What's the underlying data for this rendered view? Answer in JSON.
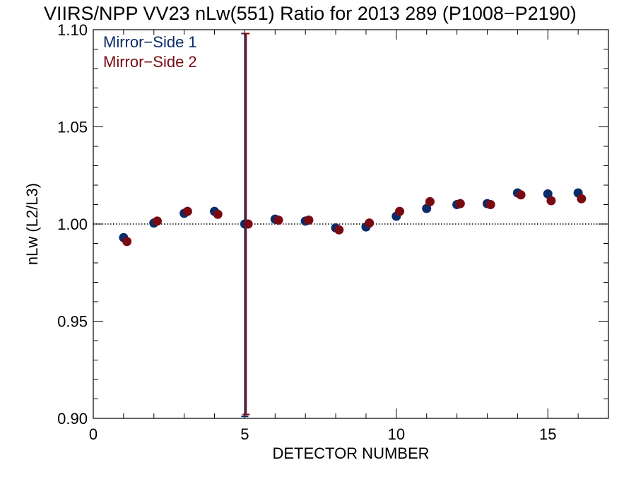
{
  "chart_data": {
    "type": "scatter",
    "title": "VIIRS/NPP VV23 nLw(551) Ratio for 2013 289 (P1008−P2190)",
    "xlabel": "DETECTOR NUMBER",
    "ylabel": "nLw (L2/L3)",
    "xlim": [
      0,
      17
    ],
    "ylim": [
      0.9,
      1.1
    ],
    "xticks": [
      0,
      5,
      10,
      15
    ],
    "xtick_labels": [
      "0",
      "5",
      "10",
      "15"
    ],
    "yticks": [
      0.9,
      0.95,
      1.0,
      1.05,
      1.1
    ],
    "ytick_labels": [
      "0.90",
      "0.95",
      "1.00",
      "1.05",
      "1.10"
    ],
    "reference_line": 1.0,
    "legend_position": "top-left",
    "grid": false,
    "series": [
      {
        "name": "Mirror−Side 1",
        "color": "#0b2c6a",
        "x": [
          1,
          2,
          3,
          4,
          5,
          6,
          7,
          8,
          9,
          10,
          11,
          12,
          13,
          14,
          15,
          16
        ],
        "y": [
          0.993,
          1.0005,
          1.0055,
          1.0065,
          1.0,
          1.0025,
          1.0015,
          0.998,
          0.9985,
          1.004,
          1.008,
          1.01,
          1.0105,
          1.016,
          1.0155,
          1.016
        ],
        "error_bar": {
          "x": 5,
          "low": 0.901,
          "high": 1.098
        }
      },
      {
        "name": "Mirror−Side 2",
        "color": "#7a0a12",
        "x": [
          1,
          2,
          3,
          4,
          5,
          6,
          7,
          8,
          9,
          10,
          11,
          12,
          13,
          14,
          15,
          16
        ],
        "y": [
          0.991,
          1.0015,
          1.0065,
          1.005,
          1.0,
          1.002,
          1.002,
          0.997,
          1.0005,
          1.0065,
          1.0115,
          1.0105,
          1.01,
          1.015,
          1.012,
          1.013
        ],
        "error_bar": {
          "x": 5,
          "low": 0.902,
          "high": 1.098
        }
      }
    ]
  }
}
